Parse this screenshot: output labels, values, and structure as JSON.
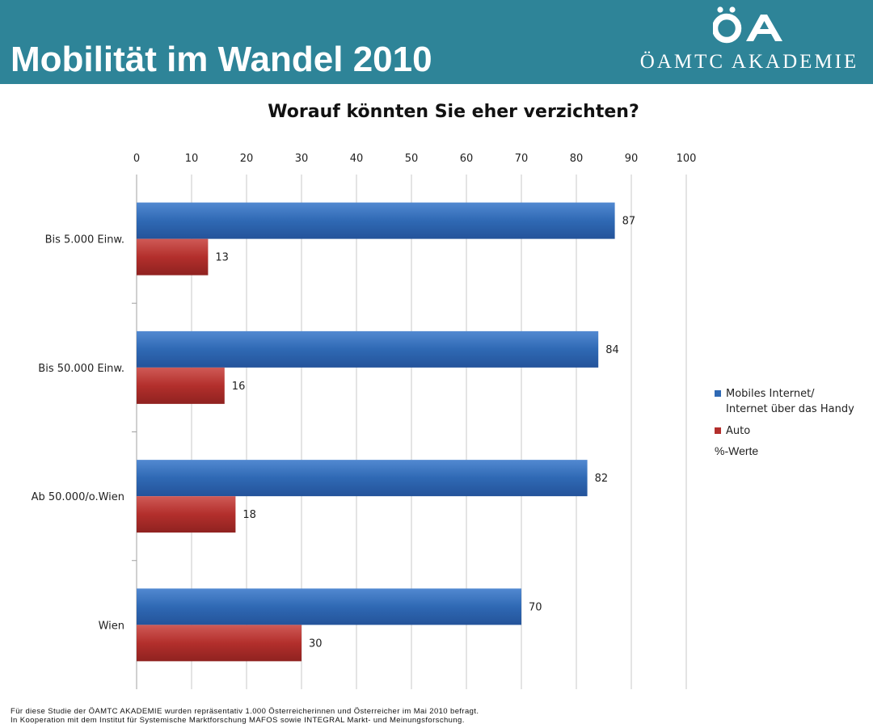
{
  "header": {
    "title": "Mobilität im Wandel 2010",
    "logo_text": "ÖAMTC AKADEMIE",
    "logo_mark_text": "ÖA"
  },
  "colors": {
    "header_bg": "#2e8498",
    "series_internet": "#2f69b4",
    "series_auto": "#b32f2c",
    "grid": "#c8c8c8"
  },
  "chart_data": {
    "type": "bar",
    "orientation": "horizontal",
    "title": "Worauf könnten Sie eher verzichten?",
    "categories": [
      "Bis 5.000 Einw.",
      "Bis 50.000 Einw.",
      "Ab 50.000/o.Wien",
      "Wien"
    ],
    "series": [
      {
        "name": "Mobiles Internet/\nInternet über das Handy",
        "values": [
          87,
          84,
          82,
          70
        ]
      },
      {
        "name": "Auto",
        "values": [
          13,
          16,
          18,
          30
        ]
      }
    ],
    "xlim": [
      0,
      100
    ],
    "xticks": [
      0,
      10,
      20,
      30,
      40,
      50,
      60,
      70,
      80,
      90,
      100
    ],
    "xlabel": "",
    "ylabel": "",
    "grid": true,
    "legend_position": "right",
    "unit_note": "%-Werte"
  },
  "legend": {
    "items": [
      {
        "label": "Mobiles Internet/\nInternet über das Handy",
        "color": "#2f69b4"
      },
      {
        "label": "Auto",
        "color": "#b32f2c"
      }
    ],
    "note": "%-Werte"
  },
  "footnote": {
    "line1": "Für diese Studie der ÖAMTC AKADEMIE wurden repräsentativ 1.000 Österreicherinnen und Österreicher im Mai 2010 befragt.",
    "line2": "In Kooperation mit dem Institut für Systemische Marktforschung MAFOS sowie INTEGRAL Markt- und Meinungsforschung."
  }
}
